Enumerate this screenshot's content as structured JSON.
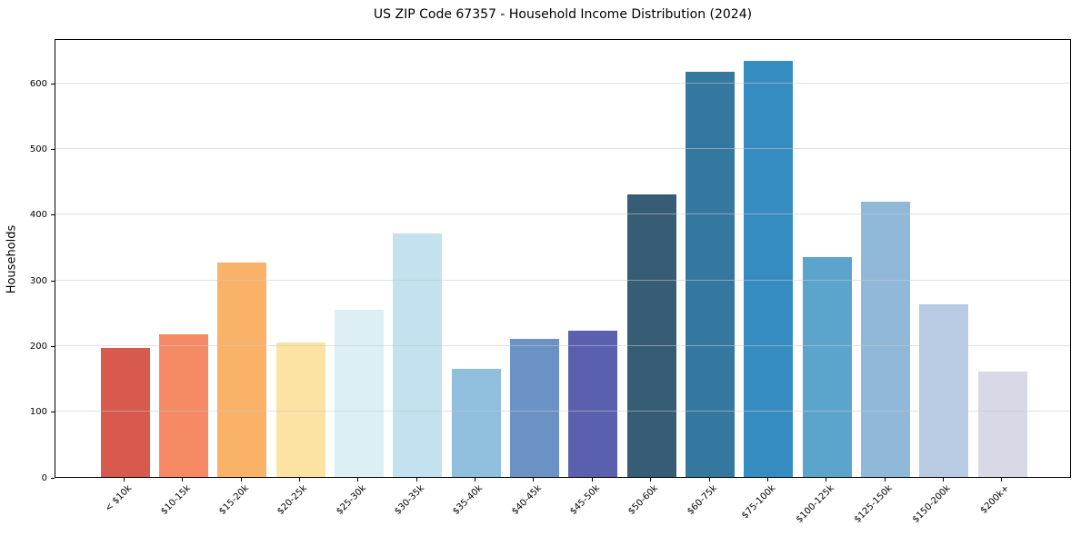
{
  "chart_data": {
    "type": "bar",
    "title": "US ZIP Code 67357 - Household Income Distribution (2024)",
    "xlabel": "",
    "ylabel": "Households",
    "categories": [
      "< $10k",
      "$10-15k",
      "$15-20k",
      "$20-25k",
      "$25-30k",
      "$30-35k",
      "$35-40k",
      "$40-45k",
      "$45-50k",
      "$50-60k",
      "$60-75k",
      "$75-100k",
      "$100-125k",
      "$125-150k",
      "$150-200k",
      "$200k+"
    ],
    "values": [
      196,
      217,
      327,
      205,
      255,
      370,
      165,
      210,
      223,
      430,
      617,
      633,
      335,
      419,
      263,
      161
    ],
    "bar_colors": [
      "#d85a4e",
      "#f58a64",
      "#f9b267",
      "#fde3a3",
      "#ddeef5",
      "#c3e1ee",
      "#90bedd",
      "#6b92c4",
      "#5a60ae",
      "#365d75",
      "#35789f",
      "#348cc1",
      "#5ba4cc",
      "#90b8d9",
      "#b8cbe2",
      "#d7d9e7"
    ],
    "ylim": [
      0,
      668
    ],
    "yticks": [
      0,
      100,
      200,
      300,
      400,
      500,
      600
    ],
    "grid": "horizontal",
    "grid_over_bars": true,
    "gridline_color": "#e6e6e6",
    "legend": "none",
    "background_color": "#ffffff",
    "axis_color": "#000000"
  }
}
